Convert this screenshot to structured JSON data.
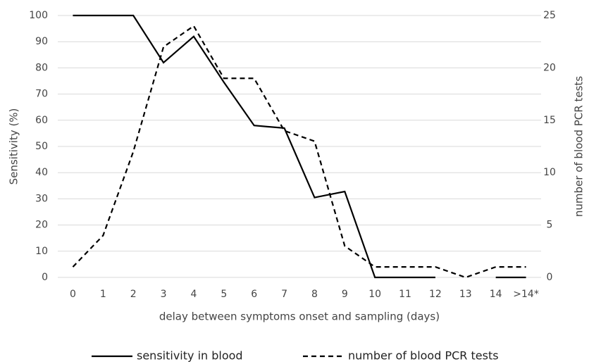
{
  "chart_data": {
    "type": "line",
    "categories": [
      "0",
      "1",
      "2",
      "3",
      "4",
      "5",
      "6",
      "7",
      "8",
      "9",
      "10",
      "11",
      "12",
      "13",
      "14",
      ">14*"
    ],
    "y_label": "Sensitivity (%)",
    "y2_label": "number of blood PCR tests",
    "x_label": "delay between symptoms onset and sampling  (days)",
    "ylim": [
      0,
      100
    ],
    "yticks": [
      0,
      10,
      20,
      30,
      40,
      50,
      60,
      70,
      80,
      90,
      100
    ],
    "y2lim": [
      0,
      25
    ],
    "y2ticks": [
      0,
      5,
      10,
      15,
      20,
      25
    ],
    "grid": true,
    "legend": "bottom",
    "series": [
      {
        "name": "sensitivity in blood",
        "color": "#000000",
        "dash": false,
        "values": [
          100,
          100,
          100,
          82,
          92,
          74.5,
          58,
          57,
          30.5,
          32.8,
          0,
          0,
          0,
          null,
          0,
          0
        ]
      },
      {
        "name": "number of blood PCR tests",
        "color": "#000000",
        "dash": true,
        "axis": "y2",
        "values": [
          1,
          4,
          12,
          22,
          24,
          19,
          19,
          14,
          13,
          3,
          1,
          1,
          1,
          0,
          1,
          1
        ]
      }
    ]
  }
}
